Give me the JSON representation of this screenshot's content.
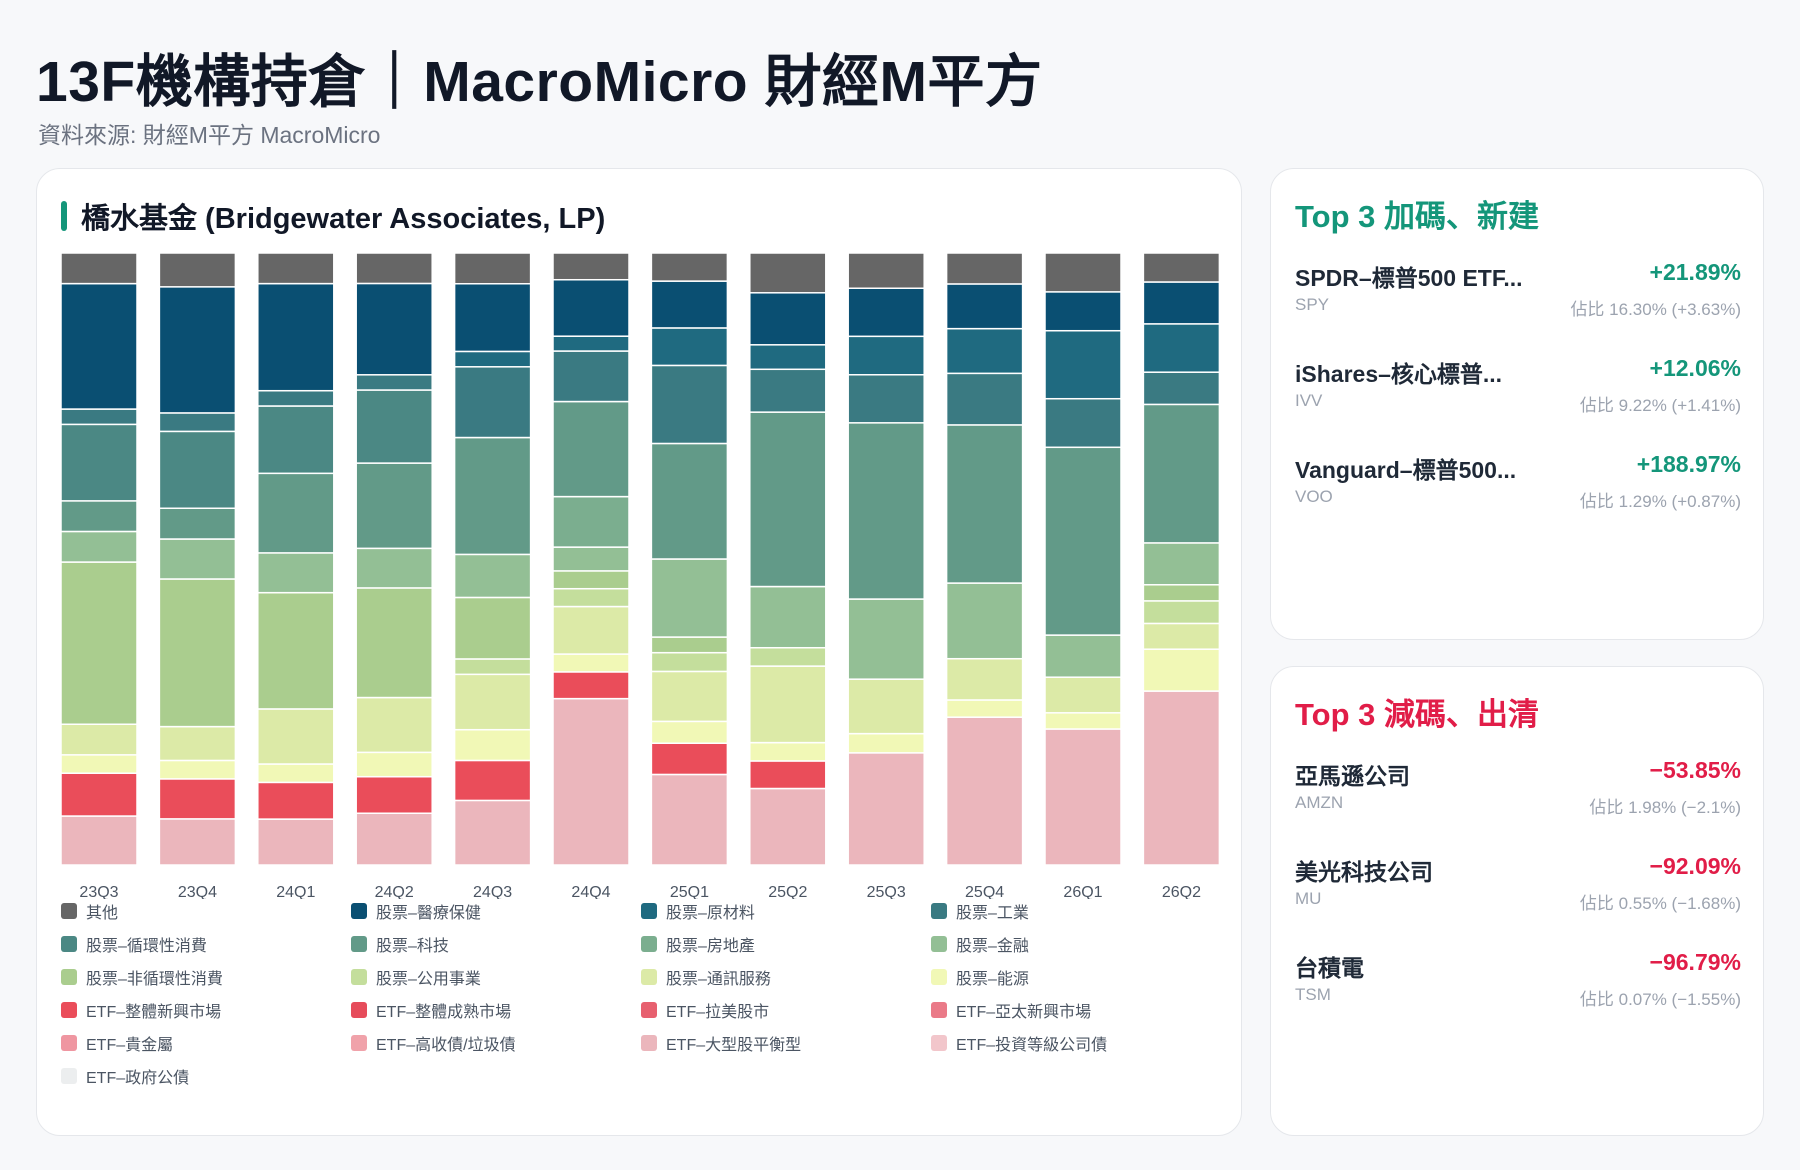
{
  "page": {
    "title": "13F機構持倉｜MacroMicro 財經M平方",
    "subtitle": "資料來源: 財經M平方 MacroMicro"
  },
  "chart_card": {
    "title": "橋水基金 (Bridgewater Associates, LP)"
  },
  "chart_data": {
    "type": "bar",
    "stacked": true,
    "normalized": "percent",
    "categories": [
      "23Q3",
      "23Q4",
      "24Q1",
      "24Q2",
      "24Q3",
      "24Q4",
      "25Q1",
      "25Q2",
      "25Q3",
      "25Q4",
      "26Q1",
      "26Q2"
    ],
    "ylim": [
      0,
      100
    ],
    "legend_position": "bottom",
    "series": [
      {
        "name": "ETF–政府公債",
        "color": "#eceeef",
        "values": [
          0,
          0,
          0,
          0,
          0,
          0,
          0,
          0,
          0,
          0,
          0,
          0
        ]
      },
      {
        "name": "ETF–投資等級公司債",
        "color": "#f2c6cb",
        "values": [
          0,
          0,
          0,
          0,
          0,
          0,
          0,
          0,
          0,
          0,
          0,
          0
        ]
      },
      {
        "name": "ETF–大型股平衡型",
        "color": "#ebb6bc",
        "values": [
          8,
          7.5,
          7.5,
          8.5,
          10.5,
          28,
          14.5,
          12.5,
          17.5,
          21.5,
          21,
          27
        ]
      },
      {
        "name": "ETF–高收債/垃圾債",
        "color": "#f0a2aa",
        "values": [
          0,
          0,
          0,
          0,
          0,
          0,
          0,
          0,
          0,
          0,
          0,
          0
        ]
      },
      {
        "name": "ETF–貴金屬",
        "color": "#ef96a1",
        "values": [
          0,
          0,
          0,
          0,
          0,
          0,
          0,
          0,
          0,
          0,
          0,
          0
        ]
      },
      {
        "name": "ETF–亞太新興市場",
        "color": "#ea7a88",
        "values": [
          0,
          0,
          0,
          0,
          0,
          0,
          0,
          0,
          0,
          0,
          0,
          0
        ]
      },
      {
        "name": "ETF–拉美股市",
        "color": "#e7606f",
        "values": [
          0,
          0,
          0,
          0,
          0,
          0,
          0,
          0,
          0,
          0,
          0,
          0
        ]
      },
      {
        "name": "ETF–整體成熟市場",
        "color": "#e64c5b",
        "values": [
          0,
          0,
          0,
          0,
          0,
          0,
          0,
          0,
          0,
          0,
          0,
          0
        ]
      },
      {
        "name": "ETF–整體新興市場",
        "color": "#ea4d5a",
        "values": [
          7,
          6.5,
          6,
          6,
          6.5,
          4.5,
          5,
          4.5,
          0,
          0,
          0,
          0
        ]
      },
      {
        "name": "股票–能源",
        "color": "#f1f8b6",
        "values": [
          3,
          3,
          3,
          4,
          5,
          3,
          3.5,
          3,
          3,
          2.5,
          2.5,
          6.5
        ]
      },
      {
        "name": "股票–通訊服務",
        "color": "#dceaa7",
        "values": [
          5,
          5.5,
          9,
          9,
          9,
          8,
          8,
          12.5,
          8.5,
          6,
          5.5,
          4
        ]
      },
      {
        "name": "股票–公用事業",
        "color": "#c4de9c",
        "values": [
          0,
          0,
          0,
          0,
          2.5,
          3,
          3,
          3,
          0,
          0,
          0,
          3.5
        ]
      },
      {
        "name": "股票–非循環性消費",
        "color": "#aacd8e",
        "values": [
          26.5,
          24,
          19,
          18,
          10,
          3,
          2.5,
          0,
          0,
          0,
          0,
          2.5
        ]
      },
      {
        "name": "股票–金融",
        "color": "#93bf95",
        "values": [
          5,
          6.5,
          6.5,
          6.5,
          7,
          4,
          12.5,
          10,
          12.5,
          11,
          6.5,
          6.5
        ]
      },
      {
        "name": "股票–房地產",
        "color": "#7bae8f",
        "values": [
          0,
          0,
          0,
          0,
          0,
          8.5,
          0,
          0,
          0,
          0,
          0,
          0
        ]
      },
      {
        "name": "股票–科技",
        "color": "#629a88",
        "values": [
          5,
          5,
          13,
          14,
          19,
          16,
          18.5,
          28.5,
          27.5,
          23,
          29,
          21.5
        ]
      },
      {
        "name": "股票–循環性消費",
        "color": "#4b8884",
        "values": [
          12.5,
          12.5,
          11,
          12,
          0,
          0,
          0,
          0,
          0,
          0,
          0,
          0
        ]
      },
      {
        "name": "股票–工業",
        "color": "#3a7a82",
        "values": [
          2.5,
          3,
          2.5,
          2.5,
          11.5,
          8.5,
          12.5,
          7,
          7.5,
          7.5,
          7.5,
          5
        ]
      },
      {
        "name": "股票–原材料",
        "color": "#1f6a80",
        "values": [
          0,
          0,
          0,
          0,
          2.5,
          2.5,
          6,
          4,
          6,
          6.5,
          10.5,
          7.5
        ]
      },
      {
        "name": "股票–醫療保健",
        "color": "#0a4f72",
        "values": [
          20.5,
          20.5,
          17.5,
          15,
          11,
          9.5,
          7.5,
          8.5,
          7.5,
          6.5,
          6,
          6.5
        ]
      },
      {
        "name": "其他",
        "color": "#666666",
        "values": [
          5,
          5.5,
          5,
          5,
          5,
          4.5,
          4.5,
          6.5,
          5.5,
          4.5,
          6,
          4.5
        ]
      }
    ]
  },
  "legend": [
    {
      "label": "其他",
      "color": "#666666"
    },
    {
      "label": "股票–醫療保健",
      "color": "#0a4f72"
    },
    {
      "label": "股票–原材料",
      "color": "#1f6a80"
    },
    {
      "label": "股票–工業",
      "color": "#3a7a82"
    },
    {
      "label": "股票–循環性消費",
      "color": "#4b8884"
    },
    {
      "label": "股票–科技",
      "color": "#629a88"
    },
    {
      "label": "股票–房地產",
      "color": "#7bae8f"
    },
    {
      "label": "股票–金融",
      "color": "#93bf95"
    },
    {
      "label": "股票–非循環性消費",
      "color": "#aacd8e"
    },
    {
      "label": "股票–公用事業",
      "color": "#c4de9c"
    },
    {
      "label": "股票–通訊服務",
      "color": "#dceaa7"
    },
    {
      "label": "股票–能源",
      "color": "#f1f8b6"
    },
    {
      "label": "ETF–整體新興市場",
      "color": "#ea4d5a"
    },
    {
      "label": "ETF–整體成熟市場",
      "color": "#e64c5b"
    },
    {
      "label": "ETF–拉美股市",
      "color": "#e7606f"
    },
    {
      "label": "ETF–亞太新興市場",
      "color": "#ea7a88"
    },
    {
      "label": "ETF–貴金屬",
      "color": "#ef96a1"
    },
    {
      "label": "ETF–高收債/垃圾債",
      "color": "#f0a2aa"
    },
    {
      "label": "ETF–大型股平衡型",
      "color": "#ebb6bc"
    },
    {
      "label": "ETF–投資等級公司債",
      "color": "#f2c6cb"
    },
    {
      "label": "ETF–政府公債",
      "color": "#eceeef"
    }
  ],
  "top_increase": {
    "title": "Top 3 加碼、新建",
    "items": [
      {
        "name": "SPDR–標普500 ETF...",
        "ticker": "SPY",
        "change": "+21.89%",
        "weight": "佔比 16.30% (+3.63%)"
      },
      {
        "name": "iShares–核心標普...",
        "ticker": "IVV",
        "change": "+12.06%",
        "weight": "佔比 9.22% (+1.41%)"
      },
      {
        "name": "Vanguard–標普500...",
        "ticker": "VOO",
        "change": "+188.97%",
        "weight": "佔比 1.29% (+0.87%)"
      }
    ]
  },
  "top_decrease": {
    "title": "Top 3 減碼、出清",
    "items": [
      {
        "name": "亞馬遜公司",
        "ticker": "AMZN",
        "change": "−53.85%",
        "weight": "佔比 1.98% (−2.1%)"
      },
      {
        "name": "美光科技公司",
        "ticker": "MU",
        "change": "−92.09%",
        "weight": "佔比 0.55% (−1.68%)"
      },
      {
        "name": "台積電",
        "ticker": "TSM",
        "change": "−96.79%",
        "weight": "佔比 0.07% (−1.55%)"
      }
    ]
  }
}
